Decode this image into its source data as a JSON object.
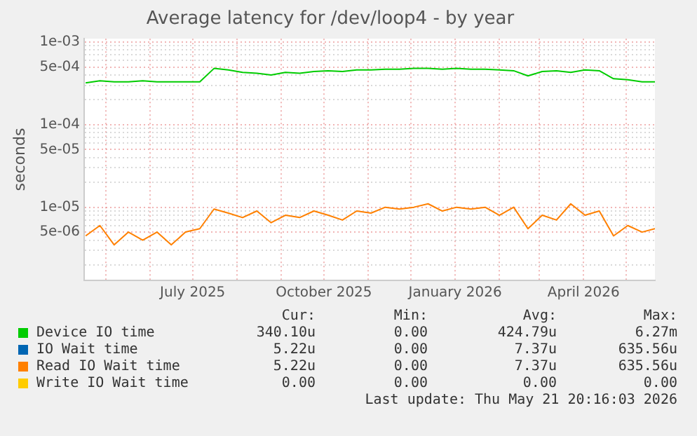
{
  "chart_data": {
    "type": "line",
    "title": "Average latency for /dev/loop4 - by year",
    "ylabel": "seconds",
    "log": "y",
    "grid": true,
    "legend": "bottom",
    "marker": "none",
    "line_style": "solid",
    "x": [
      "2025-04-17",
      "2025-04-27",
      "2025-05-07",
      "2025-05-17",
      "2025-05-27",
      "2025-06-06",
      "2025-06-16",
      "2025-06-26",
      "2025-07-06",
      "2025-07-16",
      "2025-07-26",
      "2025-08-05",
      "2025-08-15",
      "2025-08-25",
      "2025-09-04",
      "2025-09-14",
      "2025-09-24",
      "2025-10-04",
      "2025-10-14",
      "2025-10-24",
      "2025-11-03",
      "2025-11-13",
      "2025-11-23",
      "2025-12-03",
      "2025-12-13",
      "2025-12-23",
      "2026-01-02",
      "2026-01-12",
      "2026-01-22",
      "2026-02-01",
      "2026-02-11",
      "2026-02-21",
      "2026-03-03",
      "2026-03-13",
      "2026-03-23",
      "2026-04-02",
      "2026-04-12",
      "2026-04-22",
      "2026-05-02",
      "2026-05-12",
      "2026-05-21"
    ],
    "xlim": [
      "2025-04-16",
      "2026-05-21"
    ],
    "xticks": [
      {
        "value": "2025-05-01",
        "label": null
      },
      {
        "value": "2025-06-01",
        "label": null
      },
      {
        "value": "2025-07-01",
        "label": "July 2025"
      },
      {
        "value": "2025-08-01",
        "label": null
      },
      {
        "value": "2025-09-01",
        "label": null
      },
      {
        "value": "2025-10-01",
        "label": "October 2025"
      },
      {
        "value": "2025-11-01",
        "label": null
      },
      {
        "value": "2025-12-01",
        "label": null
      },
      {
        "value": "2026-01-01",
        "label": "January 2026"
      },
      {
        "value": "2026-02-01",
        "label": null
      },
      {
        "value": "2026-03-01",
        "label": null
      },
      {
        "value": "2026-04-01",
        "label": "April 2026"
      },
      {
        "value": "2026-05-01",
        "label": null
      }
    ],
    "ylim": [
      1.3e-06,
      0.0011
    ],
    "yticks": [
      {
        "value": 2e-06,
        "label": null
      },
      {
        "value": 3e-06,
        "label": null
      },
      {
        "value": 4e-06,
        "label": null
      },
      {
        "value": 5e-06,
        "label": "5e-06"
      },
      {
        "value": 6e-06,
        "label": null
      },
      {
        "value": 7e-06,
        "label": null
      },
      {
        "value": 8e-06,
        "label": null
      },
      {
        "value": 9e-06,
        "label": null
      },
      {
        "value": 1e-05,
        "label": "1e-05"
      },
      {
        "value": 2e-05,
        "label": null
      },
      {
        "value": 3e-05,
        "label": null
      },
      {
        "value": 4e-05,
        "label": null
      },
      {
        "value": 5e-05,
        "label": "5e-05"
      },
      {
        "value": 6e-05,
        "label": null
      },
      {
        "value": 7e-05,
        "label": null
      },
      {
        "value": 8e-05,
        "label": null
      },
      {
        "value": 9e-05,
        "label": null
      },
      {
        "value": 0.0001,
        "label": "1e-04"
      },
      {
        "value": 0.0002,
        "label": null
      },
      {
        "value": 0.0003,
        "label": null
      },
      {
        "value": 0.0004,
        "label": null
      },
      {
        "value": 0.0005,
        "label": "5e-04"
      },
      {
        "value": 0.0006,
        "label": null
      },
      {
        "value": 0.0007,
        "label": null
      },
      {
        "value": 0.0008,
        "label": null
      },
      {
        "value": 0.0009,
        "label": null
      },
      {
        "value": 0.001,
        "label": "1e-03"
      }
    ],
    "series": [
      {
        "name": "Device IO time",
        "color": "#00cc00",
        "values": [
          0.00032,
          0.00034,
          0.00033,
          0.00033,
          0.00034,
          0.00033,
          0.00033,
          0.00033,
          0.00033,
          0.00048,
          0.00046,
          0.00043,
          0.00042,
          0.0004,
          0.00043,
          0.00042,
          0.00044,
          0.00045,
          0.00044,
          0.00046,
          0.00046,
          0.00047,
          0.00047,
          0.00048,
          0.00048,
          0.00047,
          0.00048,
          0.00047,
          0.00047,
          0.00046,
          0.00045,
          0.00039,
          0.00044,
          0.00045,
          0.00043,
          0.00046,
          0.00045,
          0.00036,
          0.00035,
          0.00033,
          0.00033
        ]
      },
      {
        "name": "IO Wait time",
        "color": "#0066b3",
        "values": [
          null,
          null,
          null,
          null,
          null,
          null,
          null,
          null,
          null,
          null,
          null,
          null,
          null,
          null,
          null,
          null,
          null,
          null,
          null,
          null,
          null,
          null,
          null,
          null,
          null,
          null,
          null,
          null,
          null,
          null,
          null,
          null,
          null,
          null,
          null,
          null,
          null,
          null,
          null,
          null,
          null
        ]
      },
      {
        "name": "Read IO Wait time",
        "color": "#ff8000",
        "values": [
          4.5e-06,
          6e-06,
          3.5e-06,
          5e-06,
          4e-06,
          5e-06,
          3.5e-06,
          5e-06,
          5.5e-06,
          9.5e-06,
          8.5e-06,
          7.5e-06,
          9e-06,
          6.5e-06,
          8e-06,
          7.5e-06,
          9e-06,
          8e-06,
          7e-06,
          9e-06,
          8.5e-06,
          1e-05,
          9.5e-06,
          1e-05,
          1.1e-05,
          9e-06,
          1e-05,
          9.5e-06,
          1e-05,
          8e-06,
          1e-05,
          5.5e-06,
          8e-06,
          7e-06,
          1.1e-05,
          8e-06,
          9e-06,
          4.5e-06,
          6e-06,
          5e-06,
          5.5e-06
        ]
      },
      {
        "name": "Write IO Wait time",
        "color": "#ffcc00",
        "values": [
          null,
          null,
          null,
          null,
          null,
          null,
          null,
          null,
          null,
          null,
          null,
          null,
          null,
          null,
          null,
          null,
          null,
          null,
          null,
          null,
          null,
          null,
          null,
          null,
          null,
          null,
          null,
          null,
          null,
          null,
          null,
          null,
          null,
          null,
          null,
          null,
          null,
          null,
          null,
          null,
          null
        ]
      }
    ],
    "annotations": [
      "Cur:",
      "Min:",
      "Avg:",
      "Max:",
      "340.10u",
      "0.00",
      "424.79u",
      "6.27m",
      "5.22u",
      "0.00",
      "7.37u",
      "635.56u",
      "5.22u",
      "0.00",
      "7.37u",
      "635.56u",
      "0.00",
      "0.00",
      "0.00",
      "0.00",
      "Last update: Thu May 21 20:16:03 2026"
    ]
  }
}
